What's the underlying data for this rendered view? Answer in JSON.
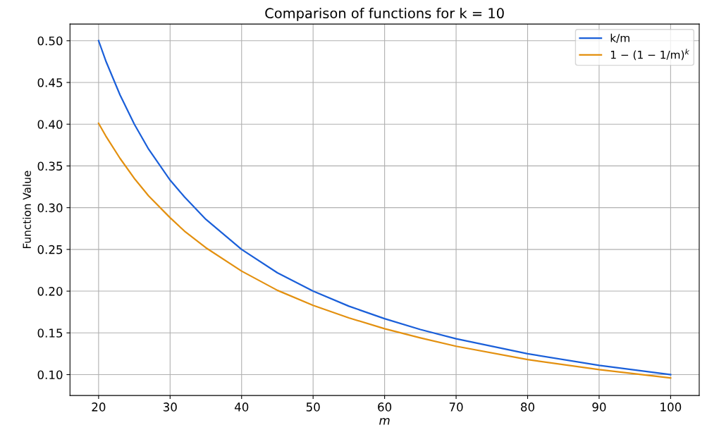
{
  "chart_data": {
    "type": "line",
    "title": "Comparison of functions for k = 10",
    "xlabel": "m",
    "ylabel": "Function Value",
    "x": [
      20,
      21,
      23,
      25,
      27,
      30,
      32,
      35,
      40,
      45,
      50,
      55,
      60,
      65,
      70,
      80,
      90,
      100
    ],
    "series": [
      {
        "name": "k/m",
        "color": "#1a5fd9",
        "values": [
          0.5,
          0.476,
          0.435,
          0.4,
          0.37,
          0.333,
          0.313,
          0.286,
          0.25,
          0.222,
          0.2,
          0.182,
          0.167,
          0.154,
          0.143,
          0.125,
          0.111,
          0.1
        ]
      },
      {
        "name": "1 − (1 − 1/m)$^{k}$",
        "color": "#e3900f",
        "values": [
          0.401,
          0.386,
          0.359,
          0.335,
          0.314,
          0.288,
          0.272,
          0.252,
          0.224,
          0.201,
          0.183,
          0.168,
          0.155,
          0.144,
          0.134,
          0.118,
          0.106,
          0.096
        ]
      }
    ],
    "xlim": [
      16,
      104
    ],
    "ylim": [
      0.075,
      0.52
    ],
    "xticks": [
      20,
      30,
      40,
      50,
      60,
      70,
      80,
      90,
      100
    ],
    "yticks": [
      {
        "value": 0.1,
        "label": "0.10"
      },
      {
        "value": 0.15,
        "label": "0.15"
      },
      {
        "value": 0.2,
        "label": "0.20"
      },
      {
        "value": 0.25,
        "label": "0.25"
      },
      {
        "value": 0.3,
        "label": "0.30"
      },
      {
        "value": 0.35,
        "label": "0.35"
      },
      {
        "value": 0.4,
        "label": "0.40"
      },
      {
        "value": 0.45,
        "label": "0.45"
      },
      {
        "value": 0.5,
        "label": "0.50"
      }
    ],
    "grid": true,
    "legend": "top right",
    "marker": "none",
    "line_style": "solid"
  }
}
